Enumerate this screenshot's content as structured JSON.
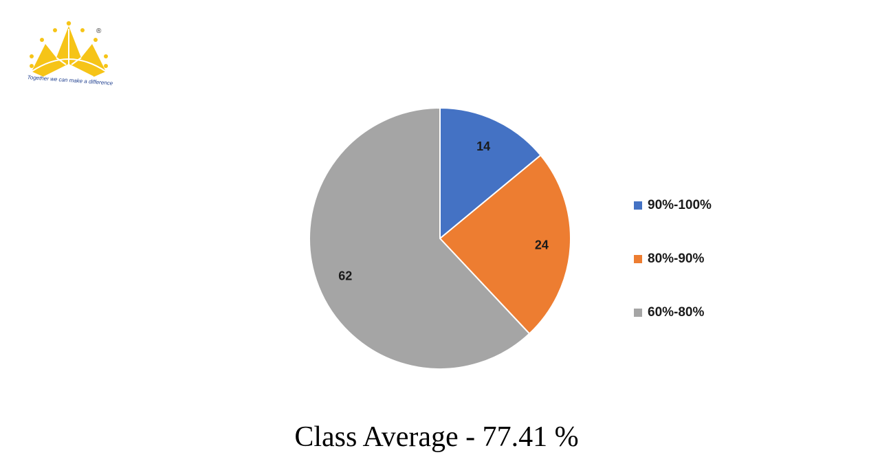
{
  "logo": {
    "tagline": "Together we can make a difference",
    "registered_mark": "®",
    "color": "#f6c417"
  },
  "chart_data": {
    "type": "pie",
    "categories": [
      "90%-100%",
      "80%-90%",
      "60%-80%"
    ],
    "values": [
      14,
      24,
      62
    ],
    "data_labels": [
      "14",
      "24",
      "62"
    ],
    "colors": [
      "#4472c4",
      "#ed7d31",
      "#a5a5a5"
    ],
    "legend_position": "right",
    "start_angle_deg": 0,
    "direction": "clockwise",
    "slice_border_color": "#ffffff"
  },
  "footer": {
    "title": "Class Average - 77.41 %"
  }
}
